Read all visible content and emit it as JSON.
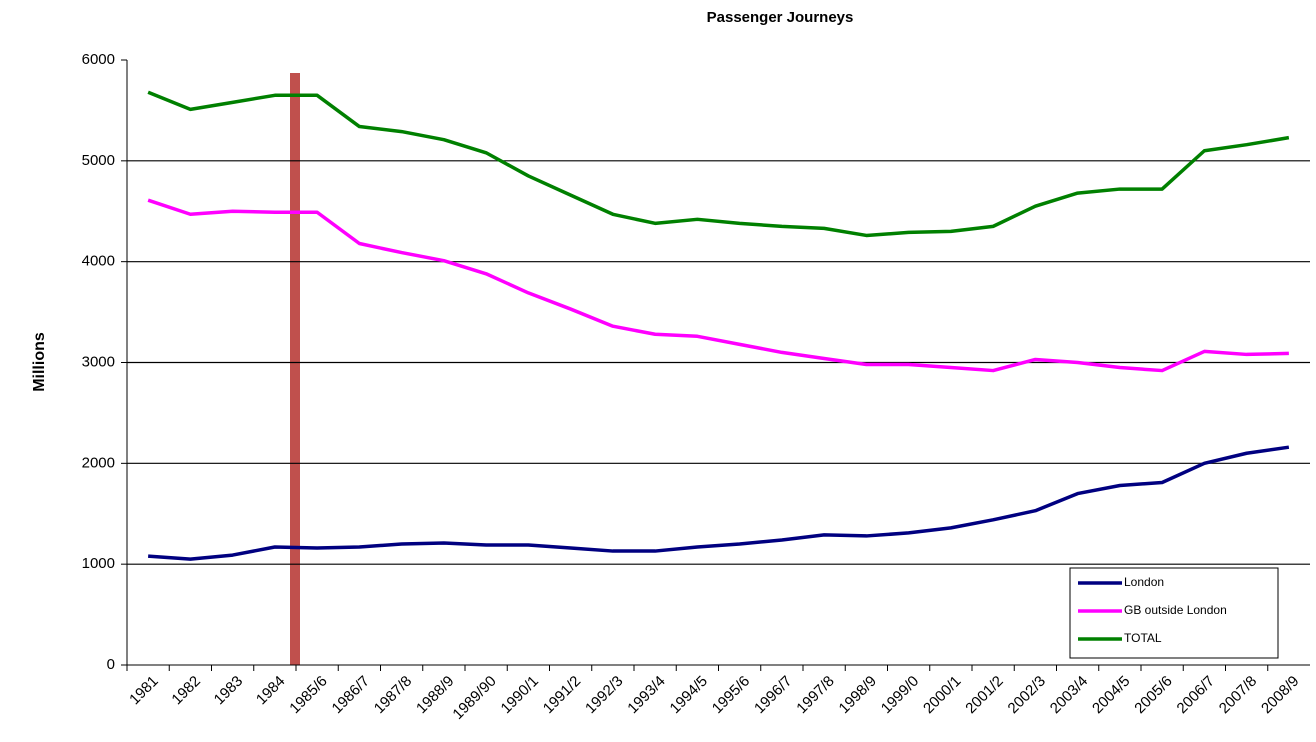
{
  "chart_data": {
    "type": "line",
    "title": "Passenger Journeys",
    "y_label": "Millions",
    "categories": [
      "1981",
      "1982",
      "1983",
      "1984",
      "1985/6",
      "1986/7",
      "1987/8",
      "1988/9",
      "1989/90",
      "1990/1",
      "1991/2",
      "1992/3",
      "1993/4",
      "1994/5",
      "1995/6",
      "1996/7",
      "1997/8",
      "1998/9",
      "1999/0",
      "2000/1",
      "2001/2",
      "2002/3",
      "2003/4",
      "2004/5",
      "2005/6",
      "2006/7",
      "2007/8",
      "2008/9"
    ],
    "series": [
      {
        "name": "London",
        "color": "#000080",
        "values": [
          1080,
          1050,
          1090,
          1170,
          1160,
          1170,
          1200,
          1210,
          1190,
          1190,
          1160,
          1130,
          1130,
          1170,
          1200,
          1240,
          1290,
          1280,
          1310,
          1360,
          1440,
          1530,
          1700,
          1780,
          1810,
          2000,
          2100,
          2160
        ]
      },
      {
        "name": "GB outside  London",
        "color": "#ff00ff",
        "values": [
          4610,
          4470,
          4500,
          4490,
          4490,
          4180,
          4090,
          4010,
          3880,
          3690,
          3530,
          3360,
          3280,
          3260,
          3180,
          3100,
          3040,
          2980,
          2980,
          2950,
          2920,
          3030,
          3000,
          2950,
          2920,
          3110,
          3080,
          3090
        ]
      },
      {
        "name": "TOTAL",
        "color": "#008000",
        "values": [
          5680,
          5510,
          5580,
          5650,
          5650,
          5340,
          5290,
          5210,
          5080,
          4850,
          4660,
          4470,
          4380,
          4420,
          4380,
          4350,
          4330,
          4260,
          4290,
          4300,
          4350,
          4550,
          4680,
          4720,
          4720,
          5100,
          5160,
          5230
        ]
      }
    ],
    "ylim": [
      0,
      6000
    ],
    "yticks": [
      0,
      1000,
      2000,
      3000,
      4000,
      5000,
      6000
    ],
    "grid": true
  }
}
